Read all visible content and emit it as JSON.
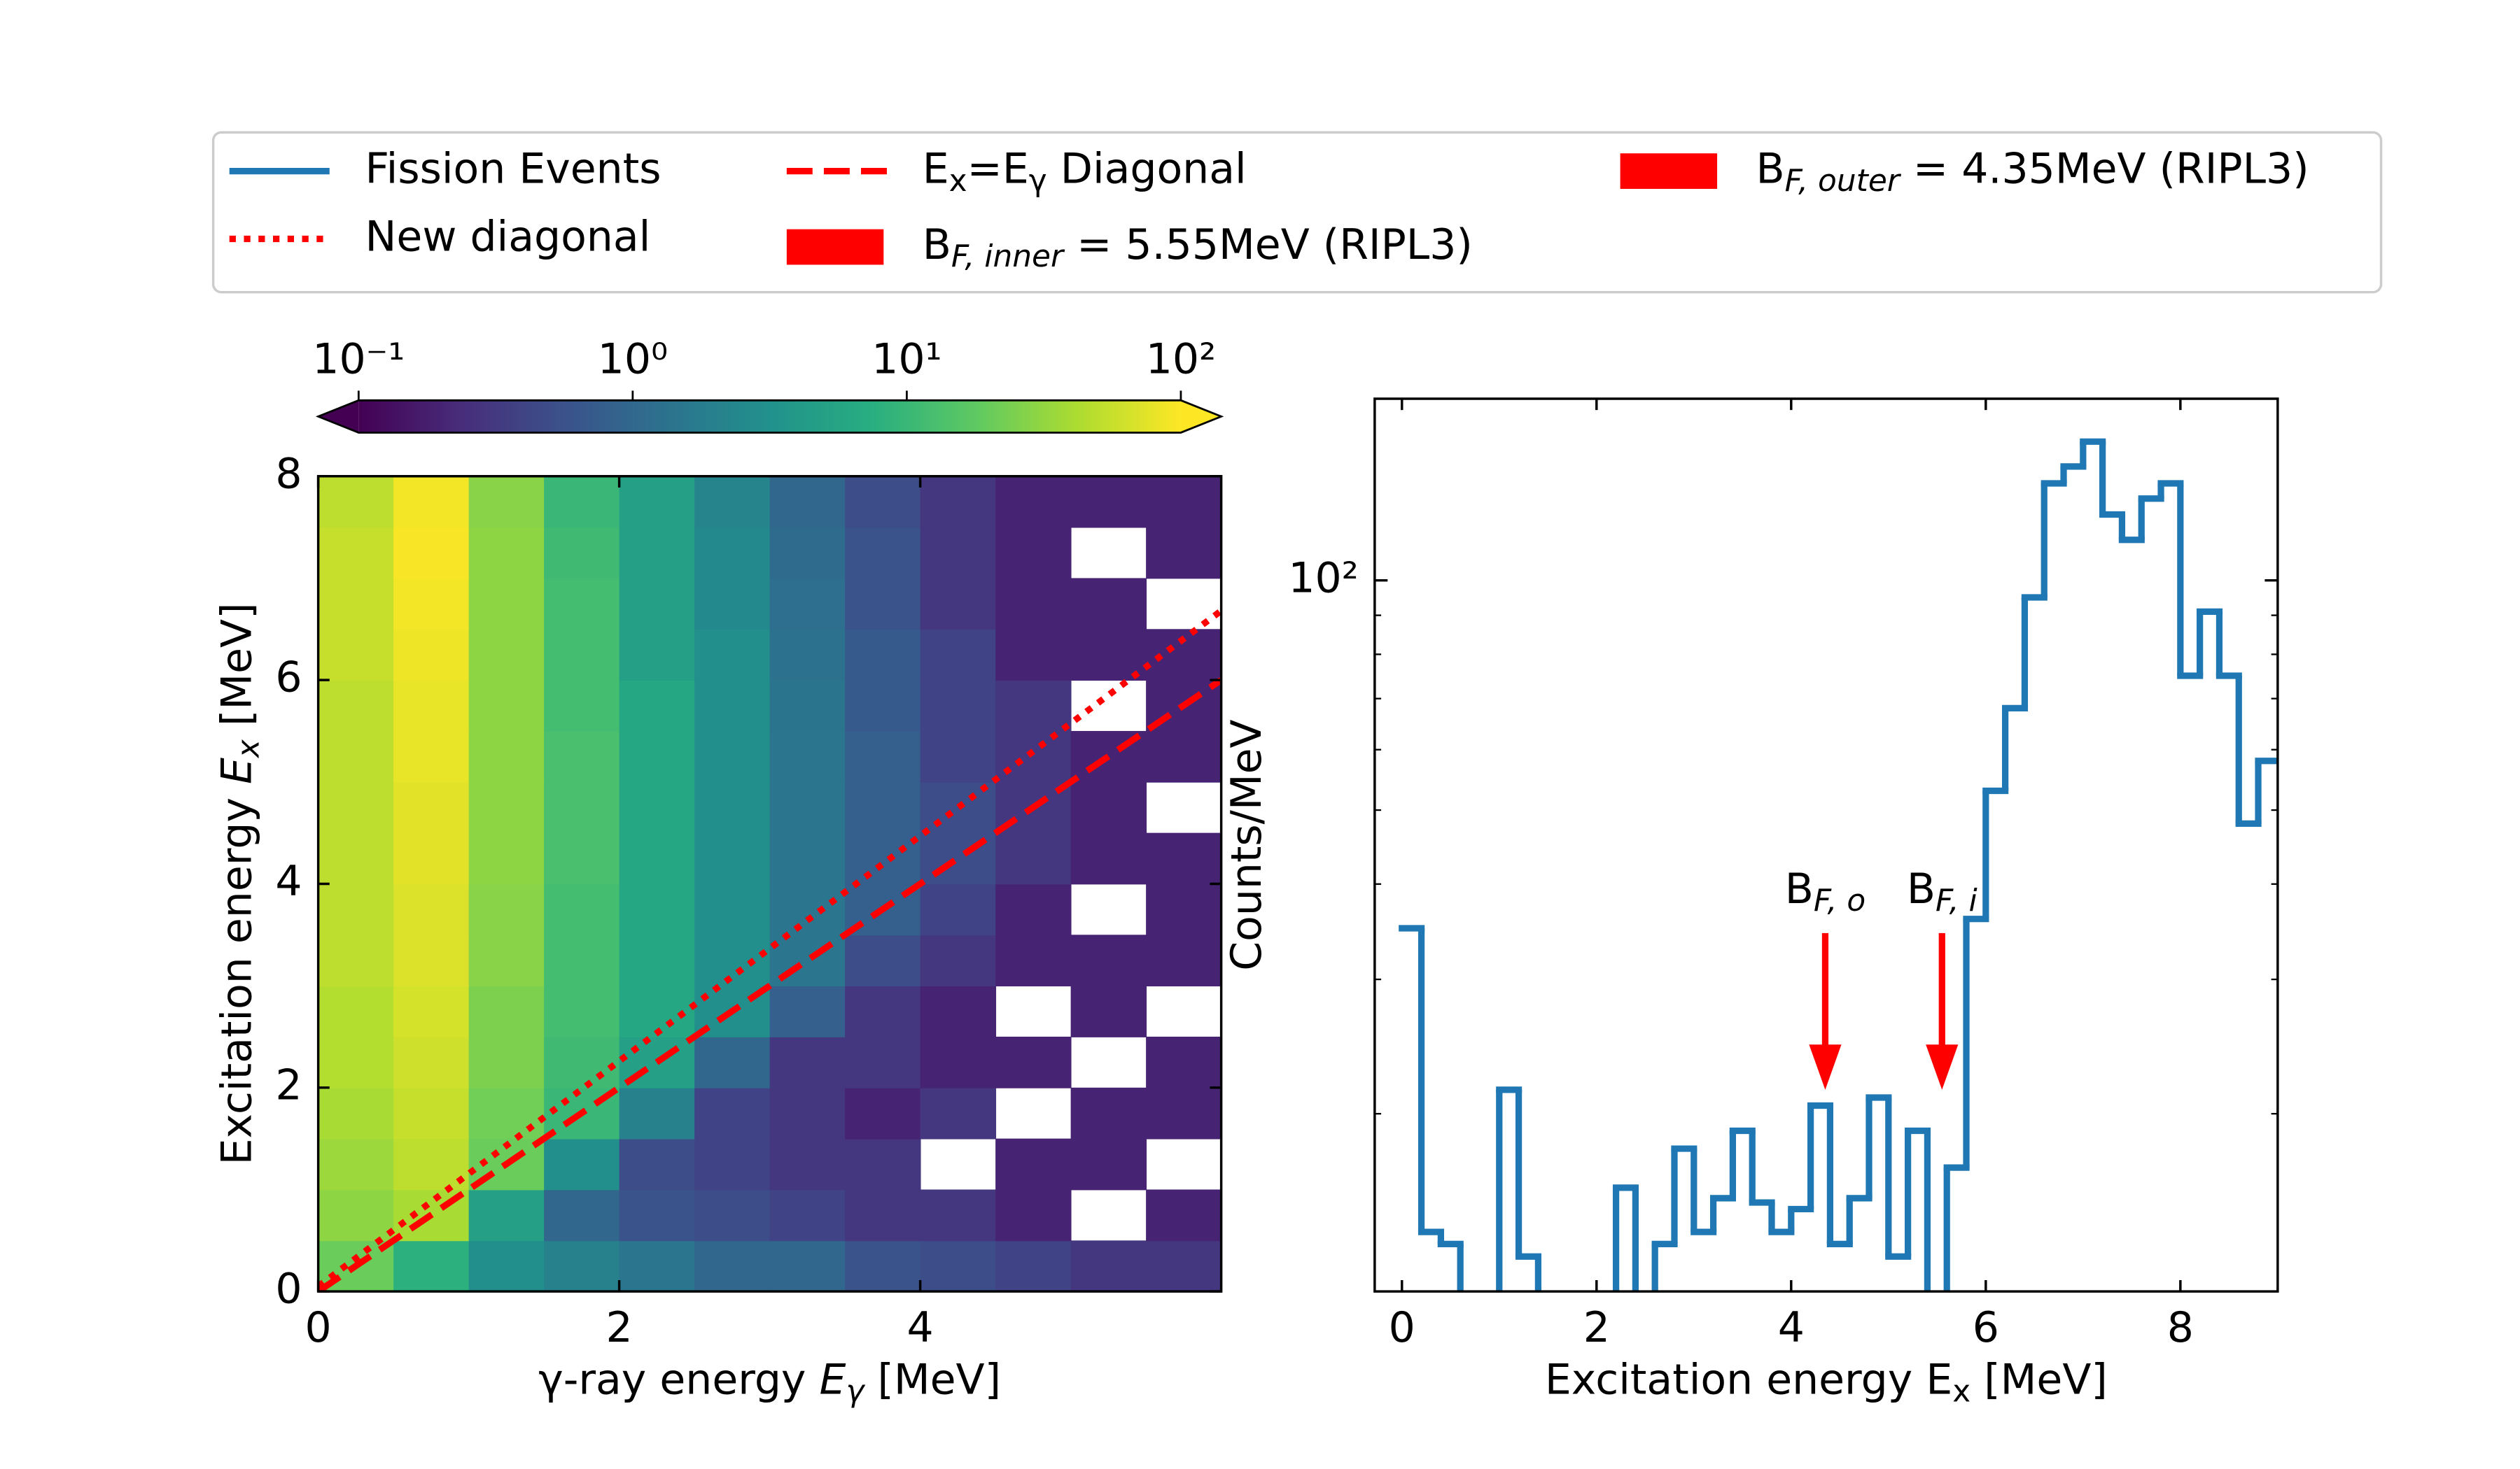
{
  "chart_data": [
    {
      "type": "heatmap",
      "x_bins": [
        0,
        0.5,
        1,
        1.5,
        2,
        2.5,
        3,
        3.5,
        4,
        4.5,
        5,
        5.5,
        6
      ],
      "y_bins": [
        0,
        0.5,
        1,
        1.5,
        2,
        2.5,
        3,
        3.5,
        4,
        4.5,
        5,
        5.5,
        6,
        6.5,
        7,
        7.5,
        8
      ],
      "z": [
        [
          20,
          8,
          3,
          2,
          1.5,
          1,
          1,
          0.6,
          0.5,
          0.4,
          0.3,
          0.3
        ],
        [
          30,
          40,
          5,
          1,
          0.6,
          0.5,
          0.4,
          0.3,
          0.3,
          0.2,
          null,
          0.2
        ],
        [
          35,
          50,
          20,
          3,
          0.5,
          0.4,
          0.3,
          0.3,
          null,
          0.2,
          0.2,
          null
        ],
        [
          40,
          55,
          22,
          10,
          2,
          0.4,
          0.3,
          0.2,
          0.3,
          null,
          0.2,
          0.2
        ],
        [
          45,
          60,
          25,
          11,
          5,
          1,
          0.3,
          0.3,
          0.2,
          0.2,
          null,
          0.2
        ],
        [
          45,
          65,
          25,
          12,
          6,
          3,
          0.8,
          0.3,
          0.2,
          null,
          0.2,
          null
        ],
        [
          50,
          70,
          28,
          12,
          6,
          3,
          1.5,
          0.5,
          0.3,
          0.2,
          0.2,
          0.2
        ],
        [
          50,
          70,
          28,
          12,
          6,
          3,
          1.5,
          0.8,
          0.4,
          0.2,
          null,
          0.2
        ],
        [
          50,
          75,
          30,
          13,
          6,
          3,
          1.5,
          0.8,
          0.5,
          0.3,
          0.2,
          0.2
        ],
        [
          50,
          75,
          30,
          13,
          6,
          3,
          1.5,
          0.8,
          0.5,
          0.3,
          0.2,
          null
        ],
        [
          50,
          80,
          30,
          13,
          6,
          3,
          1.5,
          0.8,
          0.4,
          0.3,
          0.2,
          0.2
        ],
        [
          50,
          80,
          30,
          12,
          6,
          3,
          1.4,
          0.7,
          0.4,
          0.3,
          null,
          0.2
        ],
        [
          55,
          85,
          30,
          12,
          5,
          3,
          1.3,
          0.7,
          0.4,
          0.2,
          0.2,
          0.2
        ],
        [
          55,
          90,
          30,
          12,
          5,
          2.5,
          1.2,
          0.6,
          0.3,
          0.2,
          0.2,
          null
        ],
        [
          55,
          95,
          30,
          11,
          5,
          2.5,
          1.1,
          0.6,
          0.3,
          0.2,
          null,
          0.2
        ],
        [
          50,
          90,
          28,
          10,
          5,
          2.2,
          1,
          0.5,
          0.3,
          0.2,
          0.2,
          0.2
        ]
      ],
      "xlim": [
        0,
        6
      ],
      "ylim": [
        0,
        8
      ],
      "xticks": [
        0,
        2,
        4
      ],
      "yticks": [
        0,
        2,
        4,
        6,
        8
      ],
      "xlabel": [
        {
          "text": "γ-ray energy "
        },
        {
          "text": "E",
          "italic": true
        },
        {
          "text": "γ",
          "italic": true,
          "sub": true
        },
        {
          "text": " [MeV]"
        }
      ],
      "ylabel": [
        {
          "text": "Excitation energy "
        },
        {
          "text": "E",
          "italic": true
        },
        {
          "text": "x",
          "italic": true,
          "sub": true
        },
        {
          "text": " [MeV]"
        }
      ],
      "colormap": "viridis",
      "log_color": true,
      "clim": [
        0.1,
        100
      ],
      "colorbar_extend": "both",
      "colorbar_ticks": [
        {
          "value": 0.1,
          "label": "10⁻¹"
        },
        {
          "value": 1,
          "label": "10⁰"
        },
        {
          "value": 10,
          "label": "10¹"
        },
        {
          "value": 100,
          "label": "10²"
        }
      ],
      "lines": [
        {
          "name": [
            {
              "text": "E"
            },
            {
              "text": "x",
              "sub": true
            },
            {
              "text": "=E"
            },
            {
              "text": "γ",
              "sub": true
            },
            {
              "text": " Diagonal"
            }
          ],
          "color": "#ff0000",
          "style": "dashed",
          "x": [
            0,
            6
          ],
          "y": [
            0,
            6
          ]
        },
        {
          "name": [
            {
              "text": "New diagonal"
            }
          ],
          "color": "#ff0000",
          "style": "dotted",
          "x": [
            0,
            6
          ],
          "y": [
            0.05,
            6.68
          ]
        }
      ]
    },
    {
      "type": "step",
      "xlim": [
        -0.28,
        9
      ],
      "ylim": [
        11.7,
        173
      ],
      "log_y": true,
      "xticks": [
        0,
        2,
        4,
        6,
        8
      ],
      "yticks": [
        {
          "value": 100,
          "label": "10²"
        }
      ],
      "yminorticks": [
        20,
        30,
        40,
        50,
        60,
        70,
        80,
        90
      ],
      "xlabel": [
        {
          "text": "Excitation energy E"
        },
        {
          "text": "x",
          "sub": true
        },
        {
          "text": " [MeV]"
        }
      ],
      "ylabel": [
        {
          "text": "Counts/MeV"
        }
      ],
      "series": [
        {
          "name": [
            {
              "text": "Fission Events"
            }
          ],
          "color": "#1f77b4",
          "bins": [
            0,
            0.2,
            0.4,
            0.6,
            0.8,
            1,
            1.2,
            1.4,
            1.6,
            1.8,
            2,
            2.2,
            2.4,
            2.6,
            2.8,
            3,
            3.2,
            3.4,
            3.6,
            3.8,
            4,
            4.2,
            4.4,
            4.6,
            4.8,
            5,
            5.2,
            5.4,
            5.6,
            5.8,
            6,
            6.2,
            6.4,
            6.6,
            6.8,
            7,
            7.2,
            7.4,
            7.6,
            7.8,
            8,
            8.2,
            8.4,
            8.6,
            8.8,
            9
          ],
          "values": [
            35,
            14,
            13.5,
            10,
            10,
            21.5,
            13,
            10,
            10,
            10,
            10,
            16,
            10,
            13.5,
            18,
            14,
            15.5,
            19,
            15.3,
            14,
            15,
            20.5,
            13.5,
            15.5,
            21,
            13,
            19,
            10,
            17,
            36,
            53,
            68,
            95,
            134,
            141,
            152,
            122,
            113,
            128,
            134,
            75,
            91,
            75,
            48,
            58
          ]
        }
      ],
      "barriers": [
        {
          "name": [
            {
              "text": "B"
            },
            {
              "text": "F, inner",
              "sub": true,
              "italic": true
            },
            {
              "text": " = 5.55MeV (RIPL3)"
            }
          ],
          "label": [
            {
              "text": "B"
            },
            {
              "text": "F, i",
              "sub": true,
              "italic": true
            }
          ],
          "x": 5.55,
          "y": [
            34.5,
            21.5
          ],
          "color": "#ff0000"
        },
        {
          "name": [
            {
              "text": "B"
            },
            {
              "text": "F, outer",
              "sub": true,
              "italic": true
            },
            {
              "text": " = 4.35MeV (RIPL3)"
            }
          ],
          "label": [
            {
              "text": "B"
            },
            {
              "text": "F, o",
              "sub": true,
              "italic": true
            }
          ],
          "x": 4.35,
          "y": [
            34.5,
            21.5
          ],
          "color": "#ff0000"
        }
      ]
    }
  ]
}
